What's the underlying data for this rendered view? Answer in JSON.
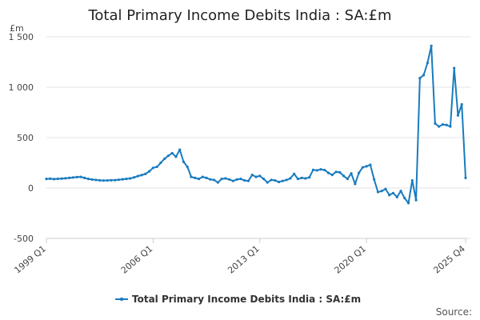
{
  "chart_data": {
    "type": "line",
    "title": "Total Primary Income Debits India : SA:£m",
    "unit_label": "£m",
    "ylim": [
      -500,
      1500
    ],
    "yticks": [
      -500,
      0,
      500,
      1000,
      1500
    ],
    "ytick_labels": [
      "-500",
      "0",
      "500",
      "1 000",
      "1 500"
    ],
    "xtick_labels": [
      "1999 Q1",
      "2006 Q1",
      "2013 Q1",
      "2020 Q1",
      "2025 Q4"
    ],
    "grid": "horizontal",
    "legend_position": "bottom",
    "series_color": "#1a7bbf",
    "series": [
      {
        "name": "Total Primary Income Debits India : SA:£m",
        "values": [
          90,
          92,
          88,
          91,
          93,
          96,
          100,
          104,
          108,
          110,
          100,
          90,
          84,
          80,
          76,
          74,
          75,
          77,
          78,
          82,
          86,
          90,
          95,
          105,
          118,
          128,
          140,
          165,
          200,
          210,
          250,
          290,
          320,
          345,
          310,
          380,
          260,
          210,
          110,
          100,
          90,
          110,
          100,
          85,
          80,
          55,
          90,
          95,
          85,
          70,
          85,
          90,
          75,
          70,
          130,
          110,
          120,
          90,
          55,
          80,
          75,
          60,
          70,
          80,
          95,
          140,
          90,
          100,
          95,
          105,
          180,
          175,
          185,
          178,
          150,
          130,
          160,
          155,
          120,
          90,
          145,
          40,
          150,
          205,
          215,
          230,
          85,
          -40,
          -30,
          -10,
          -70,
          -50,
          -90,
          -30,
          -100,
          -150,
          75,
          -120,
          1090,
          1120,
          1240,
          1410,
          640,
          610,
          630,
          625,
          610,
          1190,
          720,
          830,
          100
        ]
      }
    ]
  },
  "source_label": "Source:"
}
